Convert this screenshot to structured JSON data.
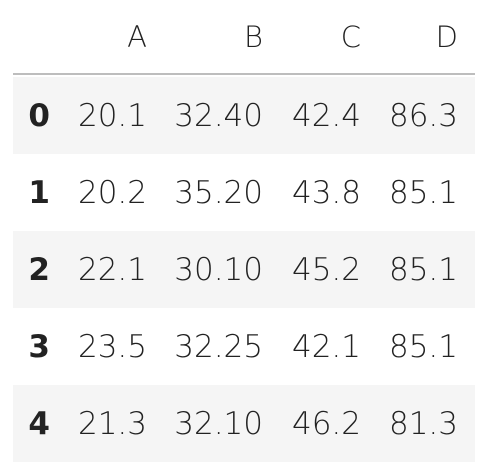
{
  "table": {
    "columns": [
      "A",
      "B",
      "C",
      "D"
    ],
    "rows": [
      [
        "0",
        "20.1",
        "32.40",
        "42.4",
        "86.3"
      ],
      [
        "1",
        "20.2",
        "35.20",
        "43.8",
        "85.1"
      ],
      [
        "2",
        "22.1",
        "30.10",
        "45.2",
        "85.1"
      ],
      [
        "3",
        "23.5",
        "32.25",
        "42.1",
        "85.1"
      ],
      [
        "4",
        "21.3",
        "32.10",
        "46.2",
        "81.3"
      ]
    ]
  }
}
